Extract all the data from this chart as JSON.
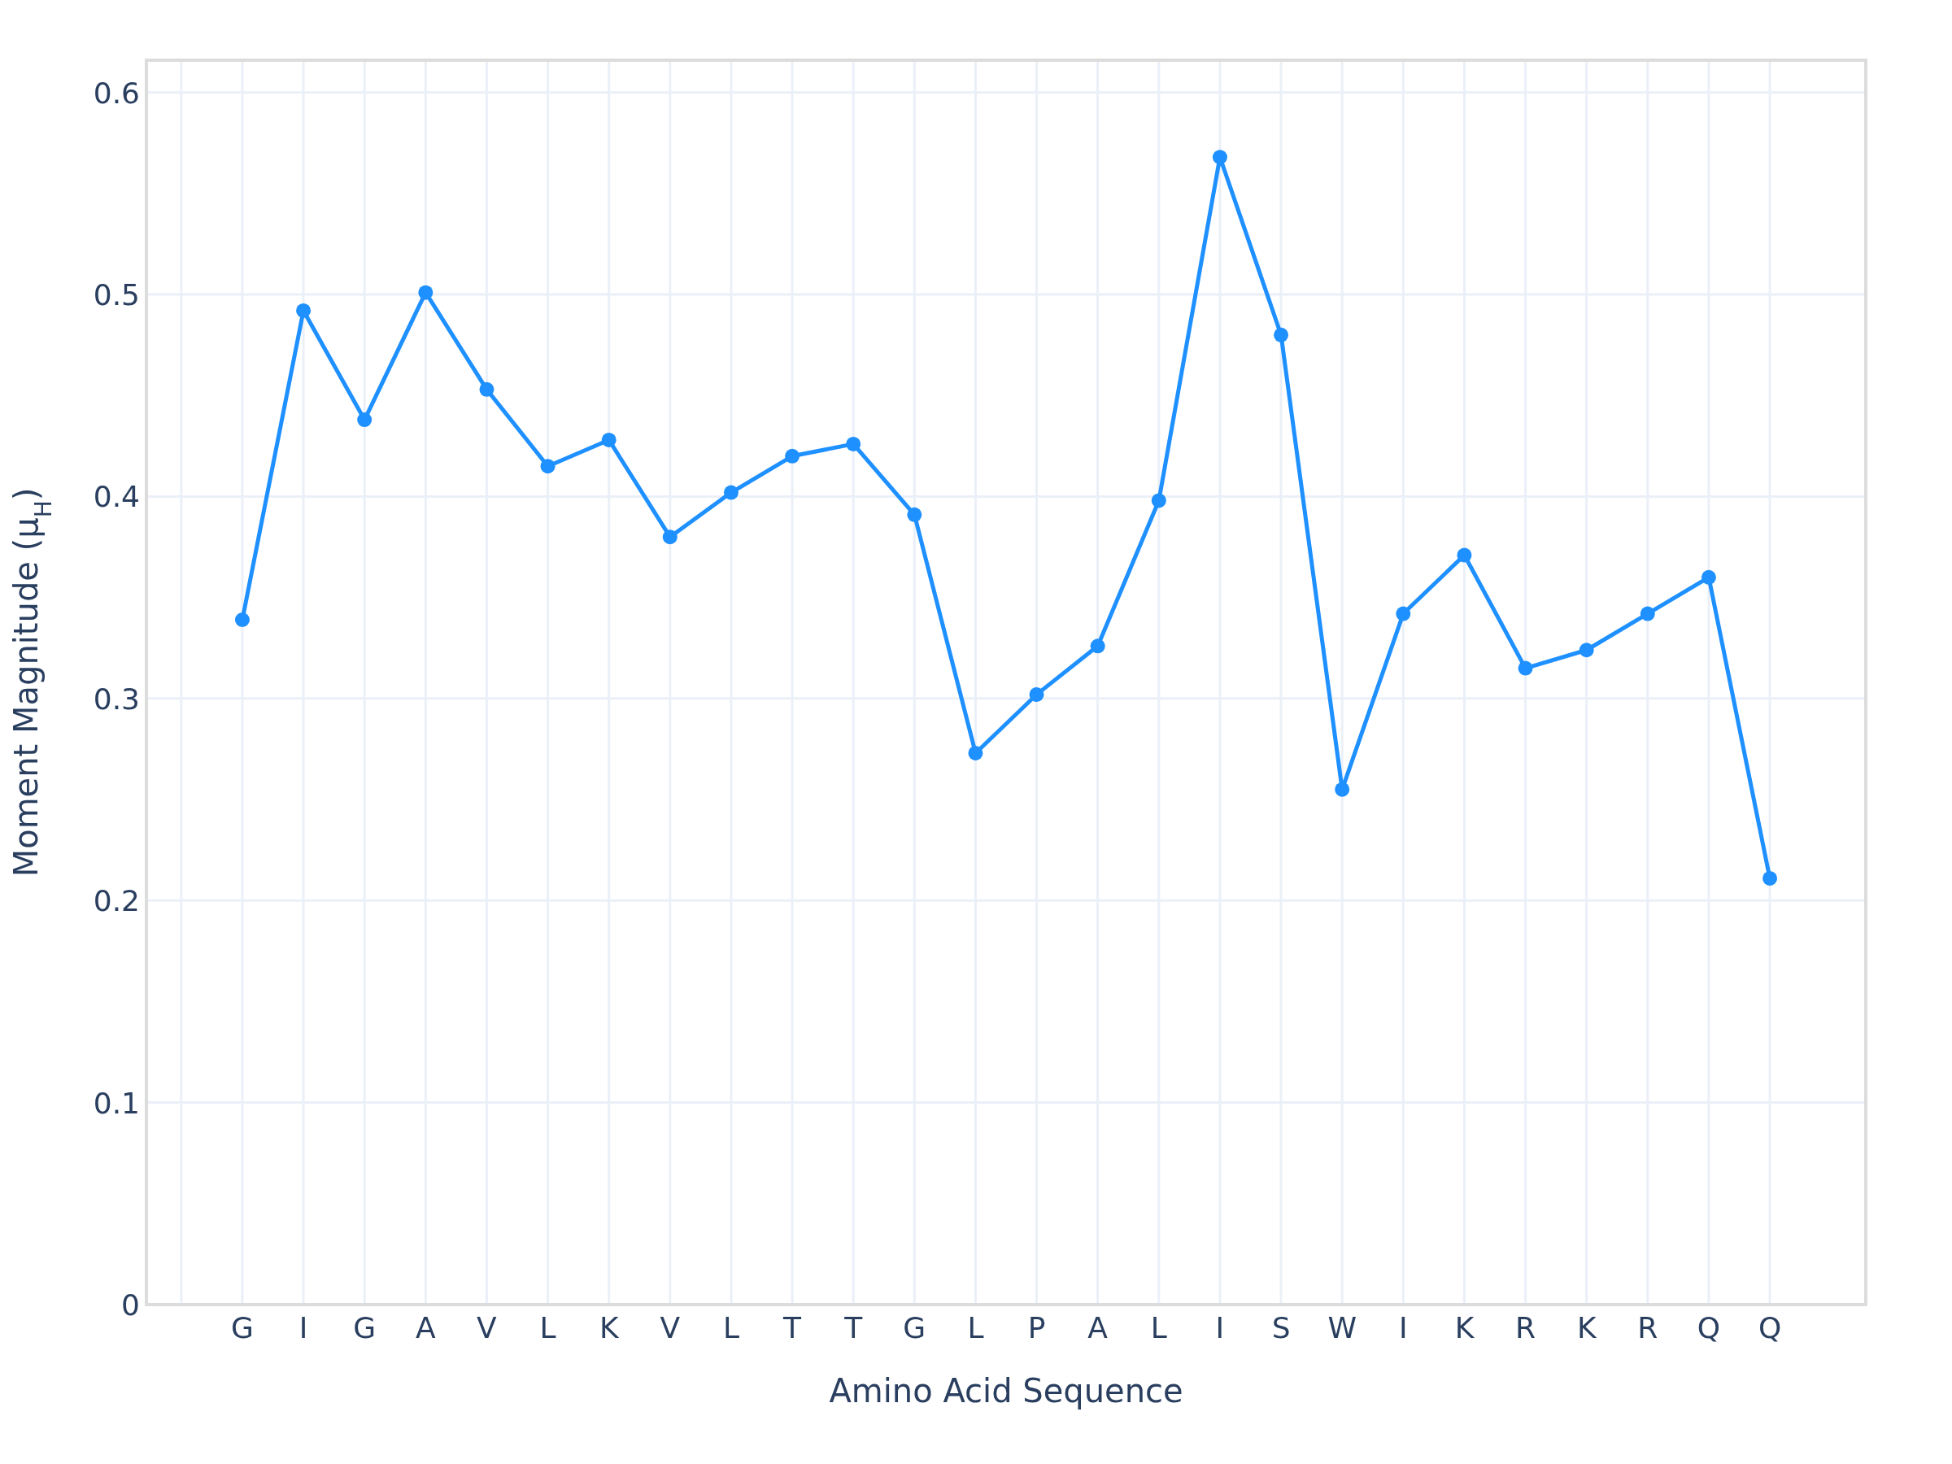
{
  "chart_data": {
    "type": "line",
    "xlabel": "Amino Acid Sequence",
    "ylabel": "Moment Magnitude (μ$_{H}$)",
    "categories": [
      null,
      "G",
      "I",
      "G",
      "A",
      "V",
      "L",
      "K",
      "V",
      "L",
      "T",
      "T",
      "G",
      "L",
      "P",
      "A",
      "L",
      "I",
      "S",
      "W",
      "I",
      "K",
      "R",
      "K",
      "R",
      "Q",
      "Q"
    ],
    "series": [
      {
        "color": "#1e90ff",
        "values": [
          null,
          0.339,
          0.492,
          0.438,
          0.501,
          0.453,
          0.415,
          0.428,
          0.38,
          0.402,
          0.42,
          0.426,
          0.391,
          0.273,
          0.302,
          0.326,
          0.398,
          0.568,
          0.48,
          0.255,
          0.342,
          0.371,
          0.315,
          0.324,
          0.342,
          0.36,
          0.211
        ]
      }
    ],
    "ylim": [
      0,
      0.616
    ],
    "yticks": [
      0,
      0.1,
      0.2,
      0.3,
      0.4,
      0.5,
      0.6
    ],
    "grid": true,
    "marker": "circle",
    "line_style": "solid"
  }
}
